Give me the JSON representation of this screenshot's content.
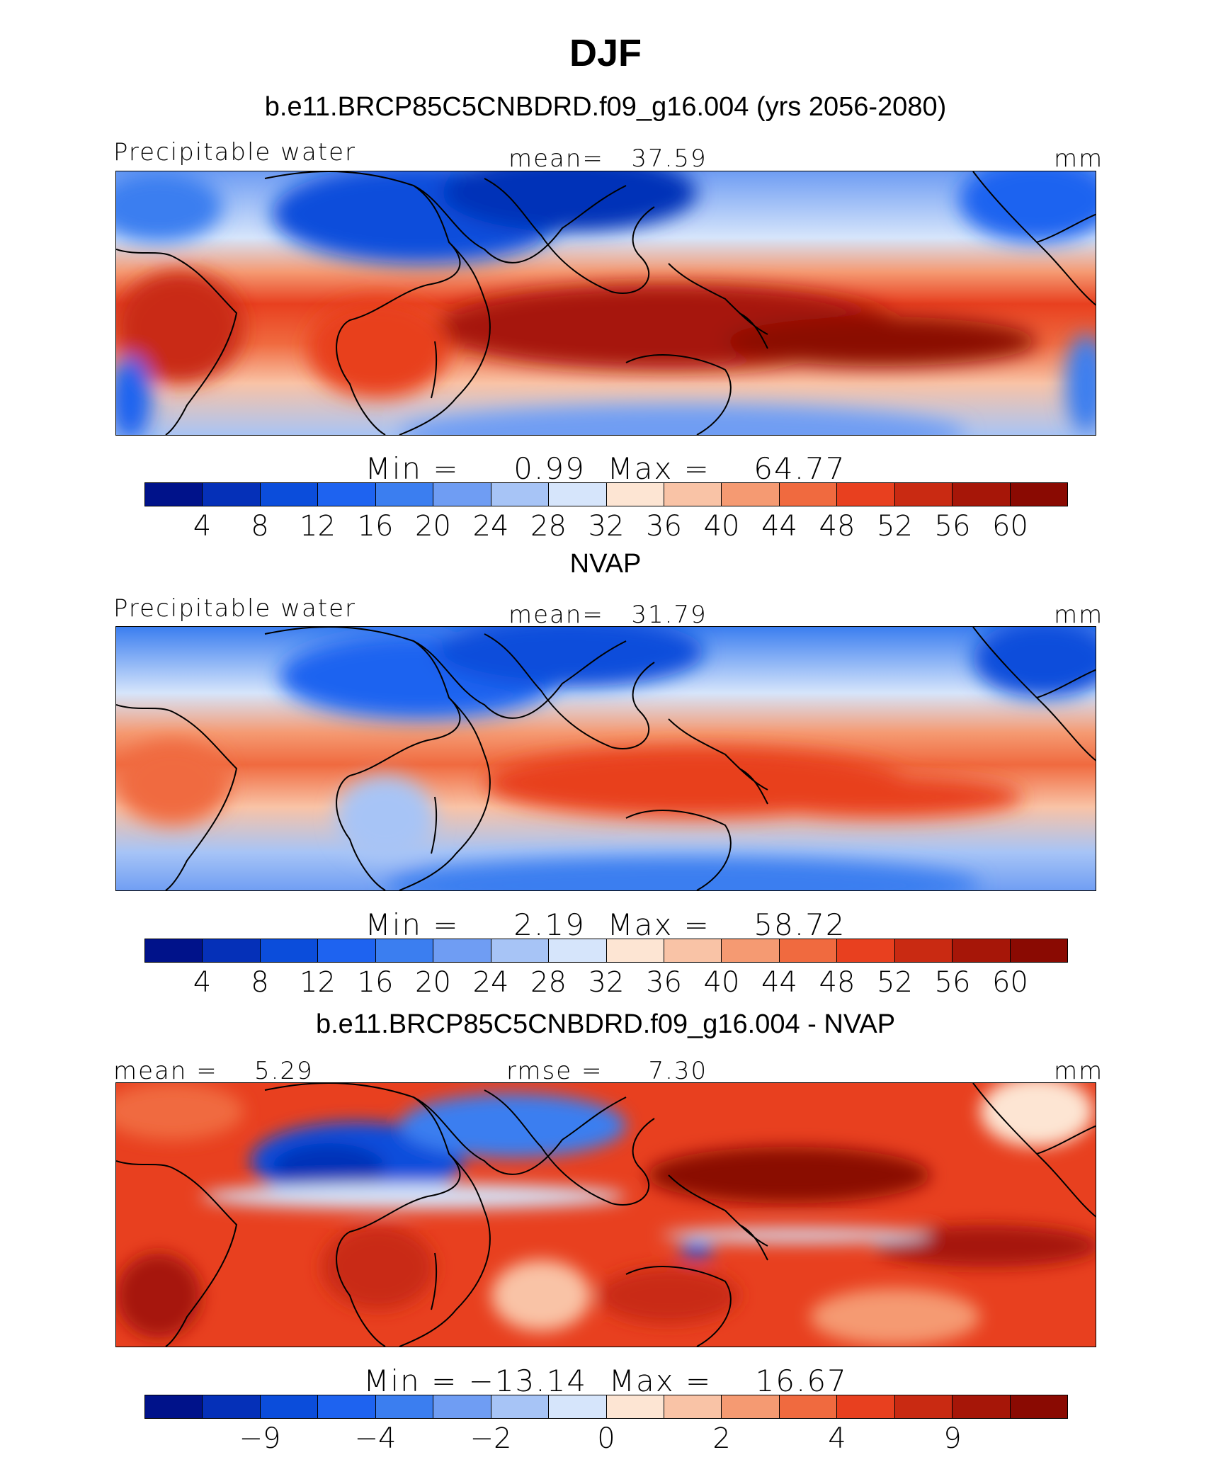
{
  "figure": {
    "title": "DJF"
  },
  "chart_data": [
    {
      "type": "heatmap",
      "title": "b.e11.BRCP85C5CNBDRD.f09_g16.004 (yrs 2056-2080)",
      "left_label": "Precipitable water",
      "center_label": "mean=   37.59",
      "units": "mm",
      "minmax_label": "Min =     0.99  Max =    64.77",
      "mean": 37.59,
      "min": 0.99,
      "max": 64.77,
      "colorbar_ticks": [
        "4",
        "8",
        "12",
        "16",
        "20",
        "24",
        "28",
        "32",
        "36",
        "40",
        "44",
        "48",
        "52",
        "56",
        "60"
      ]
    },
    {
      "type": "heatmap",
      "title": "NVAP",
      "left_label": "Precipitable water",
      "center_label": "mean=   31.79",
      "units": "mm",
      "minmax_label": "Min =     2.19  Max =    58.72",
      "mean": 31.79,
      "min": 2.19,
      "max": 58.72,
      "colorbar_ticks": [
        "4",
        "8",
        "12",
        "16",
        "20",
        "24",
        "28",
        "32",
        "36",
        "40",
        "44",
        "48",
        "52",
        "56",
        "60"
      ]
    },
    {
      "type": "heatmap",
      "title": "b.e11.BRCP85C5CNBDRD.f09_g16.004 - NVAP",
      "left_label": "mean =    5.29",
      "center_label": "rmse =     7.30",
      "units": "mm",
      "minmax_label": "Min = −13.14  Max =    16.67",
      "mean": 5.29,
      "rmse": 7.3,
      "min": -13.14,
      "max": 16.67,
      "colorbar_ticks": [
        "−9",
        "−4",
        "−2",
        "0",
        "2",
        "4",
        "9"
      ]
    }
  ],
  "colorbar_colors": [
    "#00128a",
    "#0530b8",
    "#0b4ddb",
    "#1e63f0",
    "#3b7ef0",
    "#6f9df3",
    "#a7c4f6",
    "#d6e5fb",
    "#fde5d3",
    "#f9c3a6",
    "#f59a72",
    "#f06a3f",
    "#e8401f",
    "#c92a12",
    "#a61608",
    "#8a0a02"
  ]
}
